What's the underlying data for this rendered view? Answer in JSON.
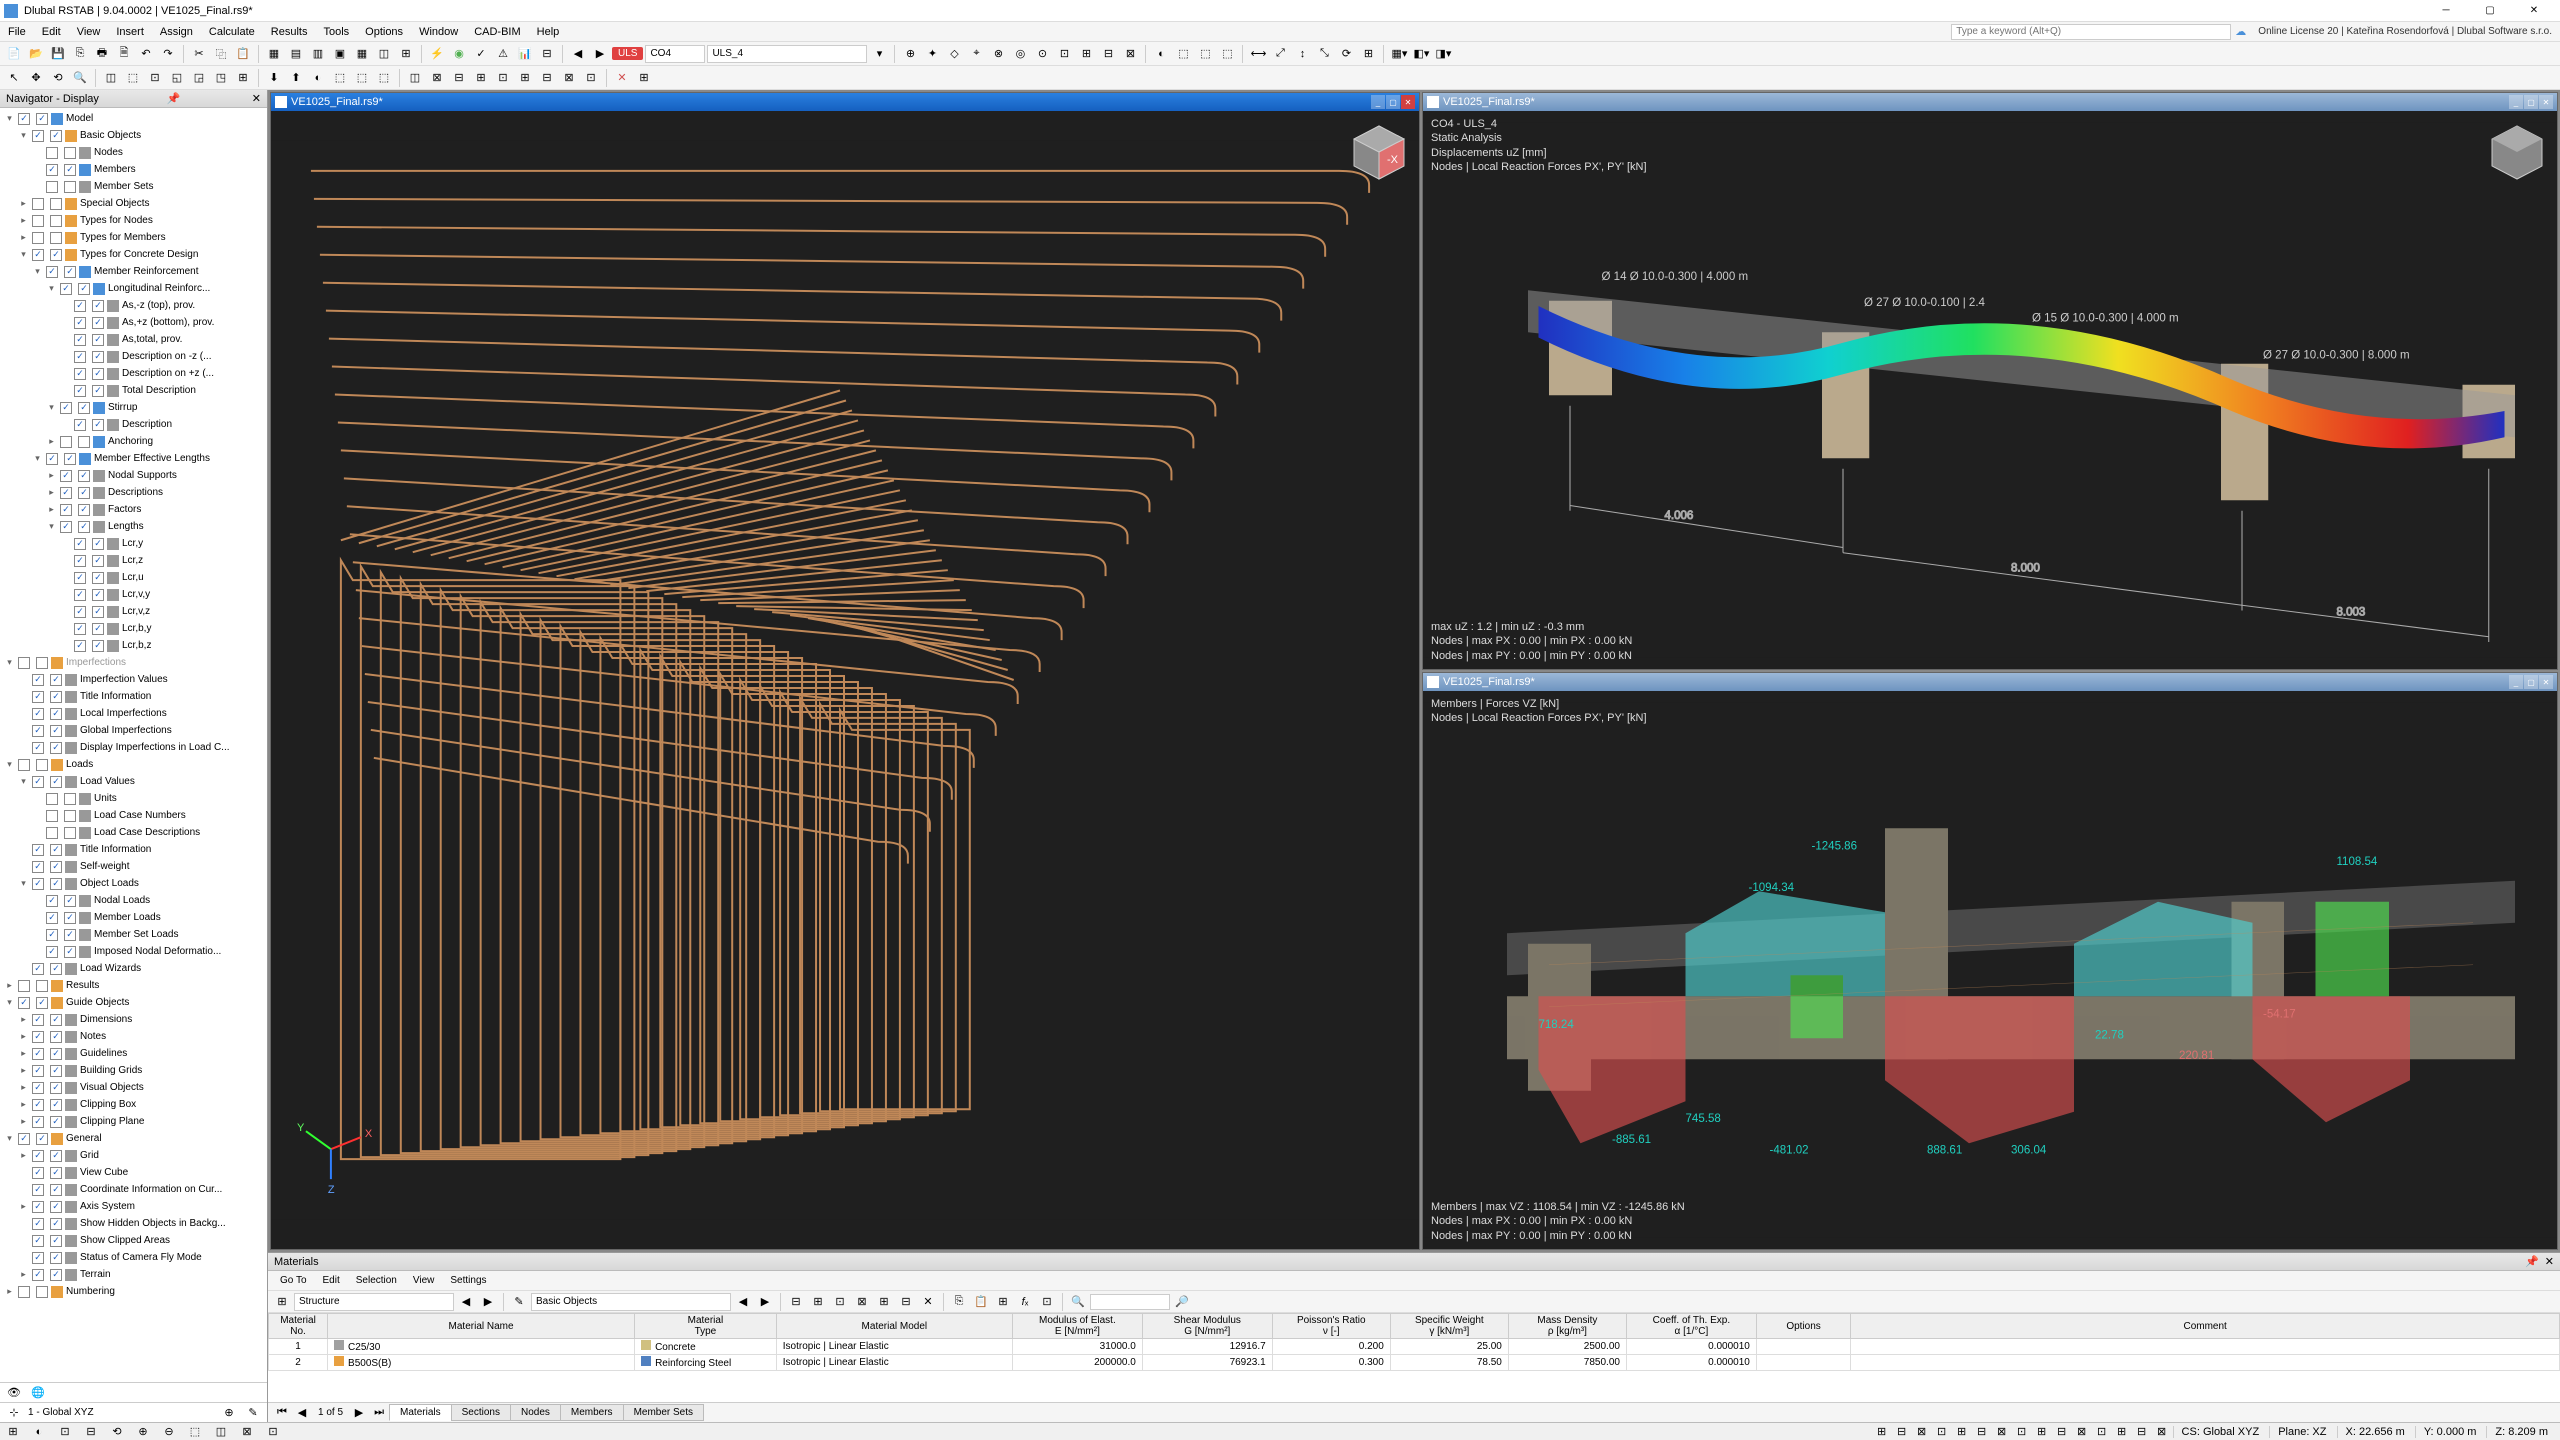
{
  "titlebar": {
    "app": "Dlubal RSTAB | 9.04.0002 | VE1025_Final.rs9*"
  },
  "menubar": {
    "items": [
      "File",
      "Edit",
      "View",
      "Insert",
      "Assign",
      "Calculate",
      "Results",
      "Tools",
      "Options",
      "Window",
      "CAD-BIM",
      "Help"
    ],
    "search_placeholder": "Type a keyword (Alt+Q)",
    "license": "Online License 20 | Kateřina Rosendorfová | Dlubal Software s.r.o."
  },
  "toolbar1": {
    "lc_label": "ULS",
    "combos": [
      "CO4",
      "ULS_4"
    ]
  },
  "nav": {
    "title": "Navigator - Display",
    "tree": [
      {
        "d": 0,
        "e": "-",
        "c": "on",
        "ic": "ic-blue",
        "l": "Model"
      },
      {
        "d": 1,
        "e": "-",
        "c": "on",
        "ic": "ic-orange",
        "l": "Basic Objects"
      },
      {
        "d": 2,
        "e": "",
        "c": "off",
        "ic": "ic-grey",
        "l": "Nodes"
      },
      {
        "d": 2,
        "e": "",
        "c": "on",
        "ic": "ic-blue",
        "l": "Members"
      },
      {
        "d": 2,
        "e": "",
        "c": "off",
        "ic": "ic-grey",
        "l": "Member Sets"
      },
      {
        "d": 1,
        "e": "+",
        "c": "off",
        "ic": "ic-orange",
        "l": "Special Objects"
      },
      {
        "d": 1,
        "e": "+",
        "c": "off",
        "ic": "ic-orange",
        "l": "Types for Nodes"
      },
      {
        "d": 1,
        "e": "+",
        "c": "off",
        "ic": "ic-orange",
        "l": "Types for Members"
      },
      {
        "d": 1,
        "e": "-",
        "c": "on",
        "ic": "ic-orange",
        "l": "Types for Concrete Design"
      },
      {
        "d": 2,
        "e": "-",
        "c": "on",
        "ic": "ic-blue",
        "l": "Member Reinforcement"
      },
      {
        "d": 3,
        "e": "-",
        "c": "on",
        "ic": "ic-blue",
        "l": "Longitudinal Reinforc..."
      },
      {
        "d": 4,
        "e": "",
        "c": "on",
        "ic": "ic-grey",
        "l": "As,-z (top), prov."
      },
      {
        "d": 4,
        "e": "",
        "c": "on",
        "ic": "ic-grey",
        "l": "As,+z (bottom), prov."
      },
      {
        "d": 4,
        "e": "",
        "c": "on",
        "ic": "ic-grey",
        "l": "As,total, prov."
      },
      {
        "d": 4,
        "e": "",
        "c": "on",
        "ic": "ic-grey",
        "l": "Description on -z (..."
      },
      {
        "d": 4,
        "e": "",
        "c": "on",
        "ic": "ic-grey",
        "l": "Description on +z (..."
      },
      {
        "d": 4,
        "e": "",
        "c": "on",
        "ic": "ic-grey",
        "l": "Total Description"
      },
      {
        "d": 3,
        "e": "-",
        "c": "on",
        "ic": "ic-blue",
        "l": "Stirrup"
      },
      {
        "d": 4,
        "e": "",
        "c": "on",
        "ic": "ic-grey",
        "l": "Description"
      },
      {
        "d": 3,
        "e": "+",
        "c": "off",
        "ic": "ic-blue",
        "l": "Anchoring"
      },
      {
        "d": 2,
        "e": "-",
        "c": "on",
        "ic": "ic-blue",
        "l": "Member Effective Lengths"
      },
      {
        "d": 3,
        "e": "+",
        "c": "on",
        "ic": "ic-grey",
        "l": "Nodal Supports"
      },
      {
        "d": 3,
        "e": "+",
        "c": "on",
        "ic": "ic-grey",
        "l": "Descriptions"
      },
      {
        "d": 3,
        "e": "+",
        "c": "on",
        "ic": "ic-grey",
        "l": "Factors"
      },
      {
        "d": 3,
        "e": "-",
        "c": "on",
        "ic": "ic-grey",
        "l": "Lengths",
        "r": "radio"
      },
      {
        "d": 4,
        "e": "",
        "c": "on",
        "ic": "ic-grey",
        "l": "Lcr,y"
      },
      {
        "d": 4,
        "e": "",
        "c": "on",
        "ic": "ic-grey",
        "l": "Lcr,z"
      },
      {
        "d": 4,
        "e": "",
        "c": "on",
        "ic": "ic-grey",
        "l": "Lcr,u"
      },
      {
        "d": 4,
        "e": "",
        "c": "on",
        "ic": "ic-grey",
        "l": "Lcr,v,y"
      },
      {
        "d": 4,
        "e": "",
        "c": "on",
        "ic": "ic-grey",
        "l": "Lcr,v,z"
      },
      {
        "d": 4,
        "e": "",
        "c": "on",
        "ic": "ic-grey",
        "l": "Lcr,b,y"
      },
      {
        "d": 4,
        "e": "",
        "c": "on",
        "ic": "ic-grey",
        "l": "Lcr,b,z"
      },
      {
        "d": 0,
        "e": "-",
        "c": "off",
        "ic": "ic-orange",
        "l": "Imperfections",
        "dim": true
      },
      {
        "d": 1,
        "e": "",
        "c": "on",
        "ic": "ic-grey",
        "l": "Imperfection Values"
      },
      {
        "d": 1,
        "e": "",
        "c": "on",
        "ic": "ic-grey",
        "l": "Title Information"
      },
      {
        "d": 1,
        "e": "",
        "c": "on",
        "ic": "ic-grey",
        "l": "Local Imperfections"
      },
      {
        "d": 1,
        "e": "",
        "c": "on",
        "ic": "ic-grey",
        "l": "Global Imperfections"
      },
      {
        "d": 1,
        "e": "",
        "c": "on",
        "ic": "ic-grey",
        "l": "Display Imperfections in Load C..."
      },
      {
        "d": 0,
        "e": "-",
        "c": "off",
        "ic": "ic-orange",
        "l": "Loads"
      },
      {
        "d": 1,
        "e": "-",
        "c": "on",
        "ic": "ic-grey",
        "l": "Load Values"
      },
      {
        "d": 2,
        "e": "",
        "c": "off",
        "ic": "ic-grey",
        "l": "Units"
      },
      {
        "d": 2,
        "e": "",
        "c": "off",
        "ic": "ic-grey",
        "l": "Load Case Numbers"
      },
      {
        "d": 2,
        "e": "",
        "c": "off",
        "ic": "ic-grey",
        "l": "Load Case Descriptions"
      },
      {
        "d": 1,
        "e": "",
        "c": "on",
        "ic": "ic-grey",
        "l": "Title Information"
      },
      {
        "d": 1,
        "e": "",
        "c": "on",
        "ic": "ic-grey",
        "l": "Self-weight"
      },
      {
        "d": 1,
        "e": "-",
        "c": "on",
        "ic": "ic-grey",
        "l": "Object Loads"
      },
      {
        "d": 2,
        "e": "",
        "c": "on",
        "ic": "ic-grey",
        "l": "Nodal Loads"
      },
      {
        "d": 2,
        "e": "",
        "c": "on",
        "ic": "ic-grey",
        "l": "Member Loads"
      },
      {
        "d": 2,
        "e": "",
        "c": "on",
        "ic": "ic-grey",
        "l": "Member Set Loads"
      },
      {
        "d": 2,
        "e": "",
        "c": "on",
        "ic": "ic-grey",
        "l": "Imposed Nodal Deformatio..."
      },
      {
        "d": 1,
        "e": "",
        "c": "on",
        "ic": "ic-grey",
        "l": "Load Wizards"
      },
      {
        "d": 0,
        "e": "+",
        "c": "off",
        "ic": "ic-orange",
        "l": "Results"
      },
      {
        "d": 0,
        "e": "-",
        "c": "on",
        "ic": "ic-orange",
        "l": "Guide Objects"
      },
      {
        "d": 1,
        "e": "+",
        "c": "on",
        "ic": "ic-grey",
        "l": "Dimensions"
      },
      {
        "d": 1,
        "e": "+",
        "c": "on",
        "ic": "ic-grey",
        "l": "Notes"
      },
      {
        "d": 1,
        "e": "+",
        "c": "on",
        "ic": "ic-grey",
        "l": "Guidelines"
      },
      {
        "d": 1,
        "e": "+",
        "c": "on",
        "ic": "ic-grey",
        "l": "Building Grids"
      },
      {
        "d": 1,
        "e": "+",
        "c": "on",
        "ic": "ic-grey",
        "l": "Visual Objects"
      },
      {
        "d": 1,
        "e": "+",
        "c": "on",
        "ic": "ic-grey",
        "l": "Clipping Box"
      },
      {
        "d": 1,
        "e": "+",
        "c": "on",
        "ic": "ic-grey",
        "l": "Clipping Plane"
      },
      {
        "d": 0,
        "e": "-",
        "c": "on",
        "ic": "ic-orange",
        "l": "General"
      },
      {
        "d": 1,
        "e": "+",
        "c": "on",
        "ic": "ic-grey",
        "l": "Grid"
      },
      {
        "d": 1,
        "e": "",
        "c": "on",
        "ic": "ic-grey",
        "l": "View Cube"
      },
      {
        "d": 1,
        "e": "",
        "c": "on",
        "ic": "ic-grey",
        "l": "Coordinate Information on Cur..."
      },
      {
        "d": 1,
        "e": "+",
        "c": "on",
        "ic": "ic-grey",
        "l": "Axis System"
      },
      {
        "d": 1,
        "e": "",
        "c": "on",
        "ic": "ic-grey",
        "l": "Show Hidden Objects in Backg..."
      },
      {
        "d": 1,
        "e": "",
        "c": "on",
        "ic": "ic-grey",
        "l": "Show Clipped Areas"
      },
      {
        "d": 1,
        "e": "",
        "c": "on",
        "ic": "ic-grey",
        "l": "Status of Camera Fly Mode"
      },
      {
        "d": 1,
        "e": "+",
        "c": "on",
        "ic": "ic-grey",
        "l": "Terrain"
      },
      {
        "d": 0,
        "e": "+",
        "c": "off",
        "ic": "ic-orange",
        "l": "Numbering"
      }
    ],
    "foot_label": "1 - Global XYZ"
  },
  "vp_left": {
    "title": "VE1025_Final.rs9*",
    "rebar_color": "#c08858",
    "bg": "#1f1f1f"
  },
  "vp_tr": {
    "title": "VE1025_Final.rs9*",
    "header": [
      "CO4 - ULS_4",
      "Static Analysis",
      "Displacements uZ [mm]",
      "Nodes | Local Reaction Forces PX', PY' [kN]"
    ],
    "footer": [
      "max uZ : 1.2 | min uZ : -0.3 mm",
      "Nodes | max PX : 0.00 | min PX : 0.00 kN",
      "Nodes | max PY : 0.00 | min PY : 0.00 kN"
    ],
    "dims": [
      "4.006",
      "8.000",
      "8.003"
    ],
    "labels": [
      "Ø 14 Ø 10.0-0.300 | 4.000 m",
      "Ø 27 Ø 10.0-0.100 | 2.4",
      "Ø 15 Ø 10.0-0.300 | 4.000 m",
      "Ø 27 Ø 10.0-0.300 | 8.000 m"
    ]
  },
  "vp_br": {
    "title": "VE1025_Final.rs9*",
    "header": [
      "Members | Forces VZ [kN]",
      "Nodes | Local Reaction Forces PX', PY' [kN]"
    ],
    "footer": [
      "Members | max VZ : 1108.54 | min VZ : -1245.86 kN",
      "Nodes | max PX : 0.00 | min PX : 0.00 kN",
      "Nodes | max PY : 0.00 | min PY : 0.00 kN"
    ],
    "vals": [
      "-1245.86",
      "-1094.34",
      "718.24",
      "-885.61",
      "745.58",
      "-481.02",
      "888.61",
      "306.04",
      "22.78",
      "220.81",
      "-54.17",
      "1108.54"
    ]
  },
  "bottom": {
    "title": "Materials",
    "menu": [
      "Go To",
      "Edit",
      "Selection",
      "View",
      "Settings"
    ],
    "combo1": "Structure",
    "combo2": "Basic Objects",
    "headers": [
      [
        "Material\nNo.",
        "Material Name",
        "Material\nType",
        "Material Model",
        "Modulus of Elast.\nE [N/mm²]",
        "Shear Modulus\nG [N/mm²]",
        "Poisson's Ratio\nν [-]",
        "Specific Weight\nγ [kN/m³]",
        "Mass Density\nρ [kg/m³]",
        "Coeff. of Th. Exp.\nα [1/°C]",
        "Options",
        "",
        "Comment"
      ]
    ],
    "rows": [
      [
        "1",
        "C25/30",
        "Concrete",
        "Isotropic | Linear Elastic",
        "31000.0",
        "12916.7",
        "0.200",
        "25.00",
        "2500.00",
        "0.000010",
        "",
        ""
      ],
      [
        "2",
        "B500S(B)",
        "Reinforcing Steel",
        "Isotropic | Linear Elastic",
        "200000.0",
        "76923.1",
        "0.300",
        "78.50",
        "7850.00",
        "0.000010",
        "",
        ""
      ]
    ],
    "tabs": [
      "Materials",
      "Sections",
      "Nodes",
      "Members",
      "Member Sets"
    ],
    "pager": "1 of 5"
  },
  "statusbar": {
    "cs": "CS: Global XYZ",
    "plane": "Plane: XZ",
    "x": "X: 22.656 m",
    "y": "Y: 0.000 m",
    "z": "Z: 8.209 m"
  },
  "colors": {
    "rainbow": [
      "#2030c0",
      "#1880e8",
      "#10d0d0",
      "#20e060",
      "#f0e020",
      "#f08020",
      "#e02020"
    ]
  }
}
